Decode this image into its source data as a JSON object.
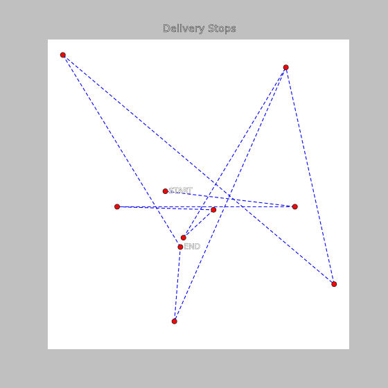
{
  "title": "Delivery Stops",
  "chart_data": {
    "type": "scatter",
    "title": "Delivery Stops",
    "xlabel": "",
    "ylabel": "",
    "xlim": [
      0,
      100
    ],
    "ylim": [
      0,
      100
    ],
    "grid": false,
    "axes_visible": false,
    "marker_color": "#ff0000",
    "marker_edge_color": "#222222",
    "route_color": "#0000ff",
    "route_style": "dashed",
    "points": [
      {
        "x": 39,
        "y": 51,
        "label": "START"
      },
      {
        "x": 82,
        "y": 46,
        "label": ""
      },
      {
        "x": 23,
        "y": 46,
        "label": ""
      },
      {
        "x": 55,
        "y": 45,
        "label": ""
      },
      {
        "x": 45,
        "y": 36,
        "label": ""
      },
      {
        "x": 79,
        "y": 91,
        "label": ""
      },
      {
        "x": 42,
        "y": 9,
        "label": ""
      },
      {
        "x": 44,
        "y": 33,
        "label": "END"
      },
      {
        "x": 5,
        "y": 95,
        "label": ""
      },
      {
        "x": 95,
        "y": 21,
        "label": ""
      }
    ],
    "route_order": [
      0,
      1,
      2,
      3,
      4,
      5,
      6,
      7,
      8,
      9,
      5
    ]
  }
}
